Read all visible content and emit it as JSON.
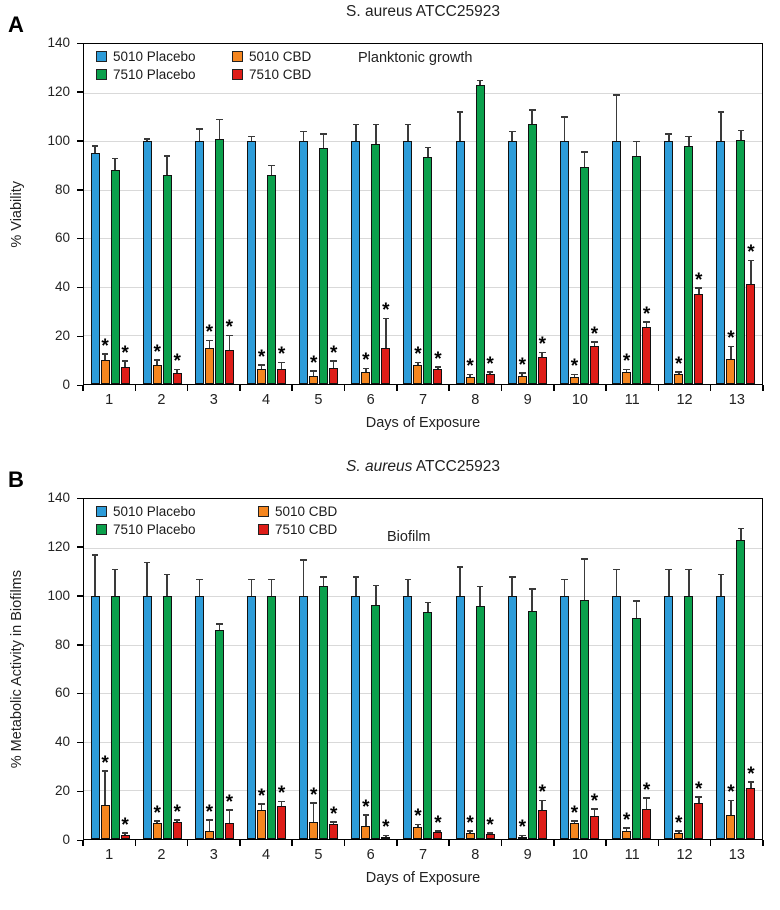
{
  "chart_data": [
    {
      "type": "bar",
      "panel_label": "A",
      "title": "S. aureus ATCC25923",
      "title_parts": [
        {
          "text": "S. aureus ATCC25923",
          "italic": false
        }
      ],
      "annotation": "Planktonic growth",
      "xlabel": "Days of Exposure",
      "ylabel": "% Viability",
      "ylim": [
        0,
        140
      ],
      "yticks": [
        0,
        20,
        40,
        60,
        80,
        100,
        120,
        140
      ],
      "grid": true,
      "error_bars": true,
      "sig_marker": "*",
      "legend_position": "top-left-inside",
      "categories": [
        1,
        2,
        3,
        4,
        5,
        6,
        7,
        8,
        9,
        10,
        11,
        12,
        13
      ],
      "series": [
        {
          "name": "5010 Placebo",
          "color": "#2D9CD9",
          "values": [
            95,
            100,
            100,
            100,
            100,
            100,
            100,
            100,
            100,
            100,
            100,
            100,
            100
          ],
          "errors": [
            3,
            1,
            5,
            2,
            4,
            7,
            7,
            12,
            4,
            10,
            19,
            3,
            12
          ],
          "significant": [
            false,
            false,
            false,
            false,
            false,
            false,
            false,
            false,
            false,
            false,
            false,
            false,
            false
          ]
        },
        {
          "name": "5010 CBD",
          "color": "#F5861F",
          "values": [
            10,
            8,
            15,
            6,
            3.5,
            5,
            8,
            3,
            3.5,
            3,
            5,
            4,
            10.5
          ],
          "errors": [
            2.5,
            2,
            3,
            2,
            2,
            1.5,
            1,
            1,
            1,
            1,
            1,
            1,
            5
          ],
          "significant": [
            true,
            true,
            true,
            true,
            true,
            true,
            true,
            true,
            true,
            true,
            true,
            true,
            true
          ]
        },
        {
          "name": "7510 Placebo",
          "color": "#0BA04C",
          "values": [
            88,
            86,
            101,
            86,
            97,
            99,
            93.5,
            123,
            107,
            89.5,
            94,
            98,
            100.5
          ],
          "errors": [
            5,
            8,
            8,
            4,
            6,
            8,
            4,
            2,
            6,
            6,
            6,
            4,
            4
          ],
          "significant": [
            false,
            false,
            false,
            false,
            false,
            false,
            false,
            false,
            false,
            false,
            false,
            false,
            false
          ]
        },
        {
          "name": "7510 CBD",
          "color": "#DE1D18",
          "values": [
            7,
            4.5,
            14,
            6,
            6.5,
            15,
            6,
            4,
            11,
            15.5,
            23.5,
            37,
            41
          ],
          "errors": [
            2.5,
            1.5,
            6,
            3,
            3,
            12,
            1,
            1,
            2,
            2,
            2,
            2.5,
            10
          ],
          "significant": [
            true,
            true,
            true,
            true,
            true,
            true,
            true,
            true,
            true,
            true,
            true,
            true,
            true
          ]
        }
      ]
    },
    {
      "type": "bar",
      "panel_label": "B",
      "title": "S. aureus ATCC25923",
      "title_parts": [
        {
          "text": "S. aureus",
          "italic": true
        },
        {
          "text": " ATCC25923",
          "italic": false
        }
      ],
      "annotation": "Biofilm",
      "xlabel": "Days of Exposure",
      "ylabel": "% Metabolic Activity in Biofilms",
      "ylim": [
        0,
        140
      ],
      "yticks": [
        0,
        20,
        40,
        60,
        80,
        100,
        120,
        140
      ],
      "grid": true,
      "error_bars": true,
      "sig_marker": "*",
      "legend_position": "top-left-inside",
      "categories": [
        1,
        2,
        3,
        4,
        5,
        6,
        7,
        8,
        9,
        10,
        11,
        12,
        13
      ],
      "series": [
        {
          "name": "5010 Placebo",
          "color": "#2D9CD9",
          "values": [
            100,
            100,
            100,
            100,
            100,
            100,
            100,
            100,
            100,
            100,
            100,
            100,
            100
          ],
          "errors": [
            17,
            14,
            7,
            7,
            15,
            8,
            7,
            12,
            8,
            7,
            11,
            11,
            9
          ],
          "significant": [
            false,
            false,
            false,
            false,
            false,
            false,
            false,
            false,
            false,
            false,
            false,
            false,
            false
          ]
        },
        {
          "name": "5010 CBD",
          "color": "#F5861F",
          "values": [
            14,
            6.5,
            3.5,
            12,
            7,
            5.5,
            5,
            2.5,
            1,
            6.5,
            3.5,
            2.5,
            10
          ],
          "errors": [
            14,
            1,
            4.5,
            2.5,
            8,
            4.5,
            1,
            1,
            0.5,
            1,
            1,
            1,
            6
          ],
          "significant": [
            true,
            true,
            true,
            true,
            true,
            true,
            true,
            true,
            true,
            true,
            true,
            true,
            true
          ]
        },
        {
          "name": "7510 Placebo",
          "color": "#0BA04C",
          "values": [
            100,
            100,
            86,
            100,
            104,
            96.5,
            93.5,
            96,
            94,
            98.5,
            91,
            100,
            123
          ],
          "errors": [
            11,
            9,
            2.5,
            7,
            4,
            8,
            4,
            8,
            9,
            17,
            7,
            11,
            5
          ],
          "significant": [
            false,
            false,
            false,
            false,
            false,
            false,
            false,
            false,
            false,
            false,
            false,
            false,
            false
          ]
        },
        {
          "name": "7510 CBD",
          "color": "#DE1D18",
          "values": [
            1.5,
            7,
            6.5,
            13.5,
            6,
            1,
            3,
            2,
            12,
            9.5,
            12.5,
            15,
            21
          ],
          "errors": [
            1,
            1,
            5.5,
            2,
            1,
            0.5,
            0.5,
            0.5,
            4,
            3,
            4.5,
            2.5,
            2.5
          ],
          "significant": [
            true,
            true,
            true,
            true,
            true,
            true,
            true,
            true,
            true,
            true,
            true,
            true,
            true
          ]
        }
      ]
    }
  ]
}
